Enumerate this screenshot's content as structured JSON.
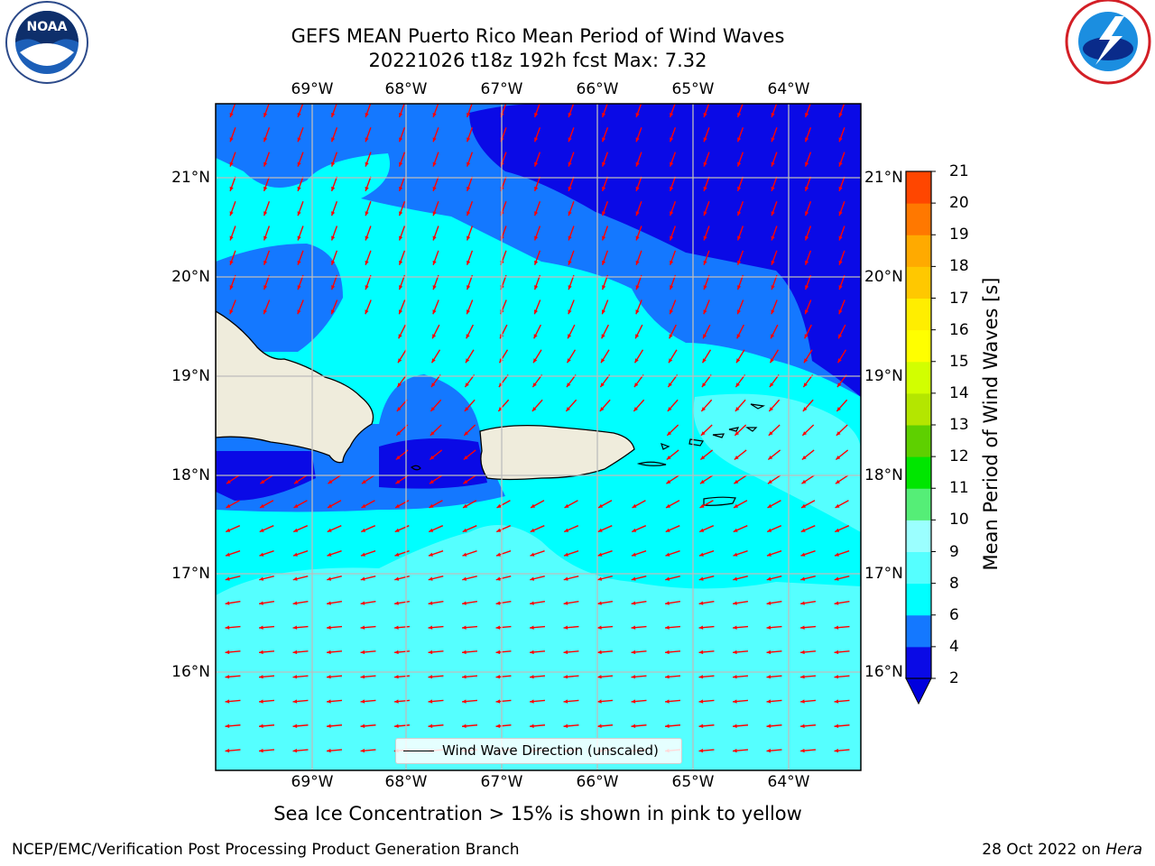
{
  "title": {
    "line1": "GEFS MEAN Puerto Rico Mean Period of Wind Waves",
    "line2": "20221026 t18z 192h fcst   Max: 7.32"
  },
  "axes": {
    "lon_labels": [
      "69°W",
      "68°W",
      "67°W",
      "66°W",
      "65°W",
      "64°W"
    ],
    "lat_labels": [
      "21°N",
      "20°N",
      "19°N",
      "18°N",
      "17°N",
      "16°N"
    ]
  },
  "legend": {
    "label": "Wind Wave Direction (unscaled)"
  },
  "colorbar": {
    "label": "Mean Period of Wind Waves [s]",
    "ticks": [
      "2",
      "4",
      "6",
      "8",
      "9",
      "10",
      "11",
      "12",
      "13",
      "14",
      "15",
      "16",
      "17",
      "18",
      "19",
      "20",
      "21"
    ],
    "colors": [
      "#0a0ae6",
      "#1478ff",
      "#00ffff",
      "#55ffff",
      "#9bffff",
      "#55ee77",
      "#00e600",
      "#5ed000",
      "#b4e600",
      "#d2ff00",
      "#ffff00",
      "#ffee00",
      "#ffc800",
      "#ffaa00",
      "#ff7800",
      "#ff4600",
      "#ff0000"
    ],
    "extend_color": "#0000dd"
  },
  "note": "Sea Ice Concentration > 15% is shown in pink to yellow",
  "footer": {
    "left": "NCEP/EMC/Verification Post Processing Product Generation Branch",
    "right_prefix": "28 Oct 2022 on ",
    "right_host": "Hera"
  },
  "logos": {
    "left": "NOAA",
    "right": "NATIONAL WEATHER SERVICE"
  },
  "colors": {
    "land": "#efecdc",
    "arrow": "#ff0000",
    "grid": "#bdbdbd"
  }
}
